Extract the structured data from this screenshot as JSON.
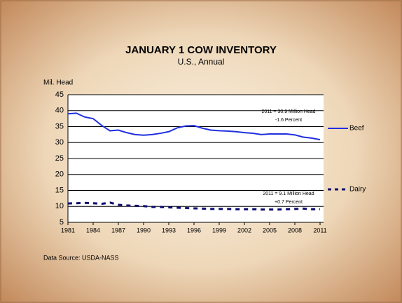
{
  "chart_data": {
    "type": "line",
    "title": "JANUARY 1  COW INVENTORY",
    "subtitle": "U.S., Annual",
    "y_label": "Mil. Head",
    "source": "Data Source:  USDA-NASS",
    "x": [
      1981,
      1982,
      1983,
      1984,
      1985,
      1986,
      1987,
      1988,
      1989,
      1990,
      1991,
      1992,
      1993,
      1994,
      1995,
      1996,
      1997,
      1998,
      1999,
      2000,
      2001,
      2002,
      2003,
      2004,
      2005,
      2006,
      2007,
      2008,
      2009,
      2010,
      2011
    ],
    "series": [
      {
        "name": "Beef",
        "color": "#1f2fe0",
        "dashed": false,
        "values": [
          39.0,
          39.2,
          38.0,
          37.5,
          35.4,
          33.7,
          33.9,
          33.1,
          32.5,
          32.3,
          32.5,
          32.9,
          33.4,
          34.6,
          35.2,
          35.3,
          34.5,
          33.9,
          33.7,
          33.6,
          33.4,
          33.1,
          32.9,
          32.5,
          32.7,
          32.7,
          32.7,
          32.4,
          31.7,
          31.4,
          30.9
        ]
      },
      {
        "name": "Dairy",
        "color": "#0a0a6e",
        "dashed": true,
        "values": [
          10.9,
          11.0,
          11.1,
          11.0,
          10.8,
          11.2,
          10.5,
          10.3,
          10.2,
          10.1,
          9.8,
          9.8,
          9.7,
          9.6,
          9.5,
          9.4,
          9.3,
          9.2,
          9.2,
          9.2,
          9.1,
          9.1,
          9.1,
          9.0,
          9.0,
          9.0,
          9.1,
          9.2,
          9.3,
          9.1,
          9.1
        ]
      }
    ],
    "annotations": [
      "2011 = 30.9 Million Head",
      "-1.6 Percent",
      "2011 = 9.1 Million Head",
      "+0.7 Percent"
    ],
    "xlim": [
      1981,
      2011
    ],
    "xticks": [
      1981,
      1984,
      1987,
      1990,
      1993,
      1996,
      1999,
      2002,
      2005,
      2008,
      2011
    ],
    "ylim": [
      5,
      45
    ],
    "yticks": [
      5,
      10,
      15,
      20,
      25,
      30,
      35,
      40,
      45
    ],
    "grid": true
  }
}
